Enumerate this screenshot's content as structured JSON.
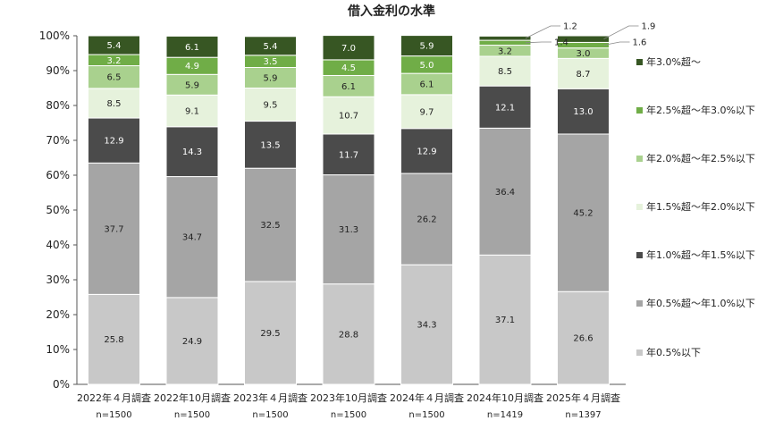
{
  "chart_data": {
    "type": "bar",
    "stacked": true,
    "title": "借入金利の水準",
    "xlabel": "",
    "ylabel": "",
    "ylim": [
      0,
      100
    ],
    "y_tick_labels": [
      "0%",
      "10%",
      "20%",
      "30%",
      "40%",
      "50%",
      "60%",
      "70%",
      "80%",
      "90%",
      "100%"
    ],
    "grid": false,
    "legend_position": "right",
    "categories": [
      "2022年４月調査",
      "2022年10月調査",
      "2023年４月調査",
      "2023年10月調査",
      "2024年４月調査",
      "2024年10月調査",
      "2025年４月調査"
    ],
    "sample_sizes": [
      "n=1500",
      "n=1500",
      "n=1500",
      "n=1500",
      "n=1500",
      "n=1419",
      "n=1397"
    ],
    "series": [
      {
        "name": "年0.5%以下",
        "color": "#c8c8c8",
        "label_color": "#222222",
        "values": [
          25.8,
          24.9,
          29.5,
          28.8,
          34.3,
          37.1,
          26.6
        ]
      },
      {
        "name": "年0.5%超～年1.0%以下",
        "color": "#a5a5a5",
        "label_color": "#222222",
        "values": [
          37.7,
          34.7,
          32.5,
          31.3,
          26.2,
          36.4,
          45.2
        ]
      },
      {
        "name": "年1.0%超～年1.5%以下",
        "color": "#4b4b4b",
        "label_color": "#ffffff",
        "values": [
          12.9,
          14.3,
          13.5,
          11.7,
          12.9,
          12.1,
          13.0
        ]
      },
      {
        "name": "年1.5%超～年2.0%以下",
        "color": "#e6f2dc",
        "label_color": "#222222",
        "values": [
          8.5,
          9.1,
          9.5,
          10.7,
          9.7,
          8.5,
          8.7
        ]
      },
      {
        "name": "年2.0%超～年2.5%以下",
        "color": "#a9d18e",
        "label_color": "#222222",
        "values": [
          6.5,
          5.9,
          5.9,
          6.1,
          6.1,
          3.2,
          3.0
        ]
      },
      {
        "name": "年2.5%超～年3.0%以下",
        "color": "#70ad47",
        "label_color": "#ffffff",
        "values": [
          3.2,
          4.9,
          3.5,
          4.5,
          5.0,
          1.4,
          1.6
        ]
      },
      {
        "name": "年3.0%超～",
        "color": "#375623",
        "label_color": "#ffffff",
        "values": [
          5.4,
          6.1,
          5.4,
          7.0,
          5.9,
          1.2,
          1.9
        ]
      }
    ]
  }
}
